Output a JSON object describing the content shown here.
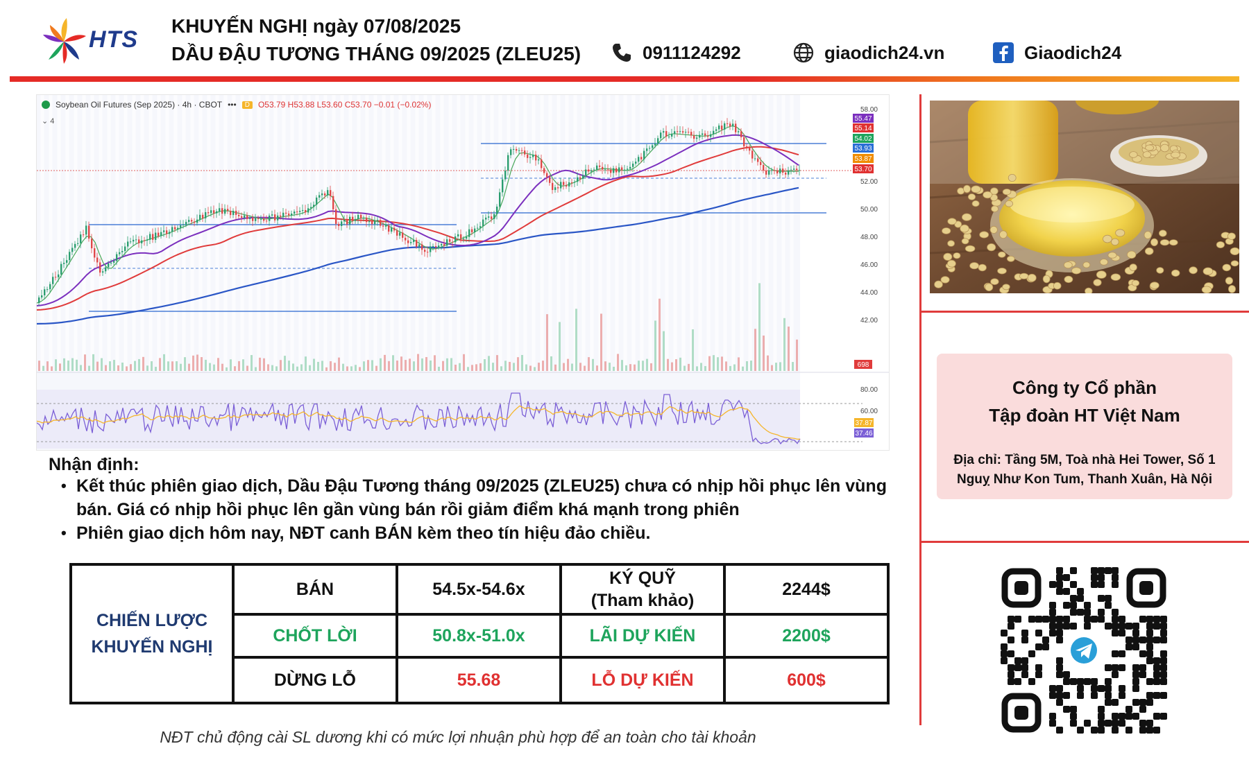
{
  "header": {
    "brand": "HTS",
    "line1": "KHUYẾN NGHỊ ngày 07/08/2025",
    "line2": "DẦU ĐẬU TƯƠNG THÁNG 09/2025 (ZLEU25)",
    "phone": "0911124292",
    "website": "giaodich24.vn",
    "facebook": "Giaodich24"
  },
  "chart": {
    "symbol_line": "Soybean Oil Futures (Sep 2025) · 4h · CBOT",
    "dots": "•••",
    "timeframe_badge": "D",
    "ohlc": "O53.79 H53.88 L53.60 C53.70 −0.01 (−0.02%)",
    "sub_label": "4",
    "price_axis": [
      "58.00",
      "52.00",
      "50.00",
      "48.00",
      "46.00",
      "44.00",
      "42.00"
    ],
    "price_tags": [
      {
        "label": "55.47",
        "color": "#7b2fbe"
      },
      {
        "label": "55.14",
        "color": "#e03131"
      },
      {
        "label": "54.02",
        "color": "#1ea45c"
      },
      {
        "label": "53.93",
        "color": "#2a6fd6"
      },
      {
        "label": "53.87",
        "color": "#f08c00"
      },
      {
        "label": "53.70",
        "color": "#e03131"
      }
    ],
    "volume_tag": "698",
    "osc_axis": [
      "80.00",
      "60.00"
    ],
    "osc_tags": [
      {
        "label": "37.87",
        "color": "#f5b52a"
      },
      {
        "label": "37.46",
        "color": "#7b5fd6"
      }
    ]
  },
  "analysis": {
    "title": "Nhận định:",
    "bullets": [
      "Kết thúc phiên giao dịch, Dầu Đậu Tương tháng 09/2025 (ZLEU25) chưa có nhịp hồi phục lên vùng bán. Giá có nhịp hồi phục lên gần vùng bán rồi giảm điểm khá mạnh trong phiên",
      "Phiên giao dịch hôm nay, NĐT canh BÁN kèm theo tín hiệu đảo chiều."
    ]
  },
  "strategy": {
    "label_line1": "CHIẾN LƯỢC",
    "label_line2": "KHUYẾN NGHỊ",
    "action": "BÁN",
    "entry": "54.5x-54.6x",
    "margin_label_line1": "KÝ QUỸ",
    "margin_label_line2": "(Tham khảo)",
    "margin_value": "2244$",
    "take_profit_label": "CHỐT LỜI",
    "take_profit_value": "50.8x-51.0x",
    "expected_profit_label": "LÃI DỰ KIẾN",
    "expected_profit_value": "2200$",
    "stop_loss_label": "DỪNG LỖ",
    "stop_loss_value": "55.68",
    "expected_loss_label": "LỖ DỰ KIẾN",
    "expected_loss_value": "600$"
  },
  "footer_note": "NĐT chủ động cài SL dương khi có mức lợi nhuận phù hợp để an toàn cho tài khoản",
  "company": {
    "name_line1": "Công ty Cổ phần",
    "name_line2": "Tập đoàn HT Việt Nam",
    "address_line1": "Địa chỉ: Tầng 5M, Toà nhà Hei Tower, Số 1",
    "address_line2": "Nguỵ Như Kon Tum, Thanh Xuân, Hà Nội"
  },
  "icons": {
    "phone": "phone-icon",
    "web": "globe-icon",
    "facebook": "facebook-icon",
    "qr_center": "telegram-icon"
  },
  "colors": {
    "accent_red": "#e03b3b",
    "green": "#1ea45c",
    "navy": "#1f3a70",
    "company_box": "#fadcdc"
  }
}
